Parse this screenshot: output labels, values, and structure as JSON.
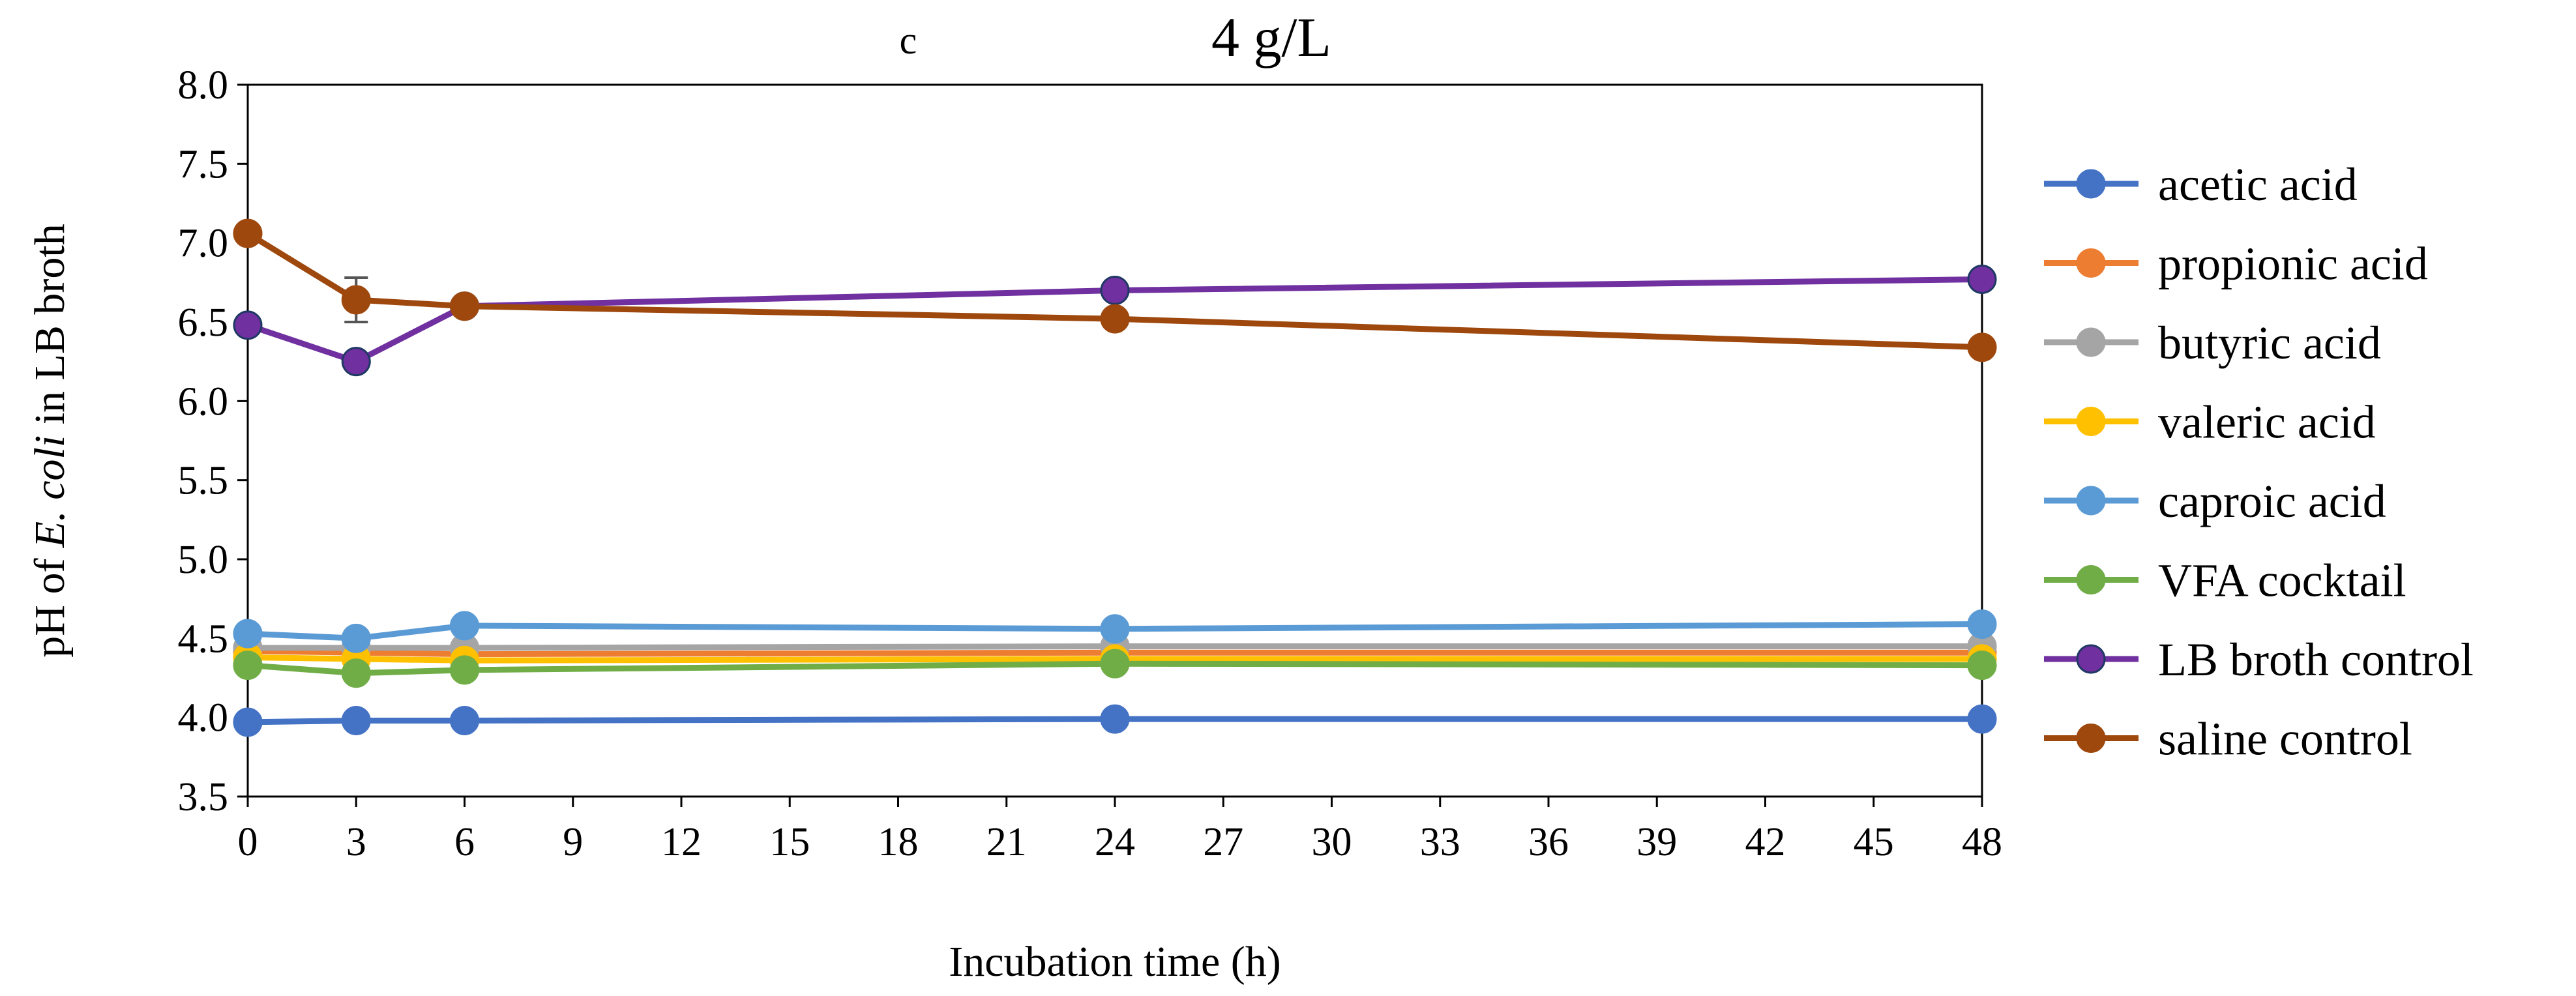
{
  "chart_data": {
    "type": "line",
    "panel_label": "c",
    "title": "4 g/L",
    "xlabel": "Incubation time (h)",
    "ylabel_parts": [
      {
        "text": "pH of ",
        "italic": false
      },
      {
        "text": "E. coli",
        "italic": true
      },
      {
        "text": " in LB broth",
        "italic": false
      }
    ],
    "xlim": [
      0,
      48
    ],
    "ylim": [
      3.5,
      8.0
    ],
    "xticks": [
      0,
      3,
      6,
      9,
      12,
      15,
      18,
      21,
      24,
      27,
      30,
      33,
      36,
      39,
      42,
      45,
      48
    ],
    "yticks": [
      "3.5",
      "4.0",
      "4.5",
      "5.0",
      "5.5",
      "6.0",
      "6.5",
      "7.0",
      "7.5",
      "8.0"
    ],
    "grid": false,
    "legend_position": "right",
    "x": [
      0,
      3,
      6,
      24,
      48
    ],
    "series": [
      {
        "name": "acetic acid",
        "color": "#4472C4",
        "marker_edge": "#4472C4",
        "values": [
          3.97,
          3.98,
          3.98,
          3.99,
          3.99
        ]
      },
      {
        "name": "propionic acid",
        "color": "#ED7D31",
        "marker_edge": "#ED7D31",
        "values": [
          4.42,
          4.41,
          4.4,
          4.41,
          4.41
        ]
      },
      {
        "name": "butyric acid",
        "color": "#A5A5A5",
        "marker_edge": "#A5A5A5",
        "values": [
          4.44,
          4.44,
          4.44,
          4.45,
          4.45
        ]
      },
      {
        "name": "valeric acid",
        "color": "#FFC000",
        "marker_edge": "#FFC000",
        "values": [
          4.38,
          4.37,
          4.36,
          4.37,
          4.37
        ]
      },
      {
        "name": "caproic acid",
        "color": "#5B9BD5",
        "marker_edge": "#5B9BD5",
        "values": [
          4.53,
          4.5,
          4.58,
          4.56,
          4.59
        ]
      },
      {
        "name": "VFA cocktail",
        "color": "#70AD47",
        "marker_edge": "#70AD47",
        "values": [
          4.33,
          4.28,
          4.3,
          4.34,
          4.33
        ]
      },
      {
        "name": "LB broth control",
        "color": "#7030A0",
        "marker_edge": "#1F3864",
        "values": [
          6.48,
          6.25,
          6.6,
          6.7,
          6.77
        ]
      },
      {
        "name": "saline control",
        "color": "#9E480E",
        "marker_edge": "#9E480E",
        "values": [
          7.06,
          6.64,
          6.6,
          6.52,
          6.34
        ]
      }
    ],
    "error_bars": [
      {
        "series": "saline control",
        "x": 3,
        "low": 6.5,
        "high": 6.78
      }
    ]
  }
}
